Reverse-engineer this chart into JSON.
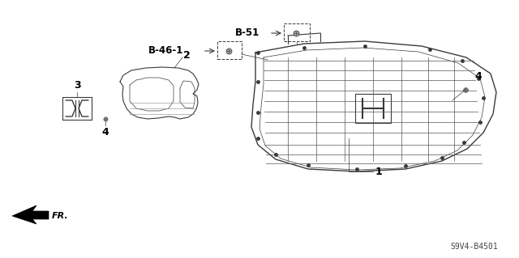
{
  "bg_color": "#ffffff",
  "line_color": "#3a3a3a",
  "label_color": "#000000",
  "title_code": "S9V4-B4501",
  "labels": {
    "B51": "B-51",
    "B461": "B-46-1",
    "num1": "1",
    "num2": "2",
    "num3": "3",
    "num4a": "4",
    "num4b": "4",
    "FR": "FR."
  },
  "figsize": [
    6.4,
    3.19
  ],
  "dpi": 100
}
